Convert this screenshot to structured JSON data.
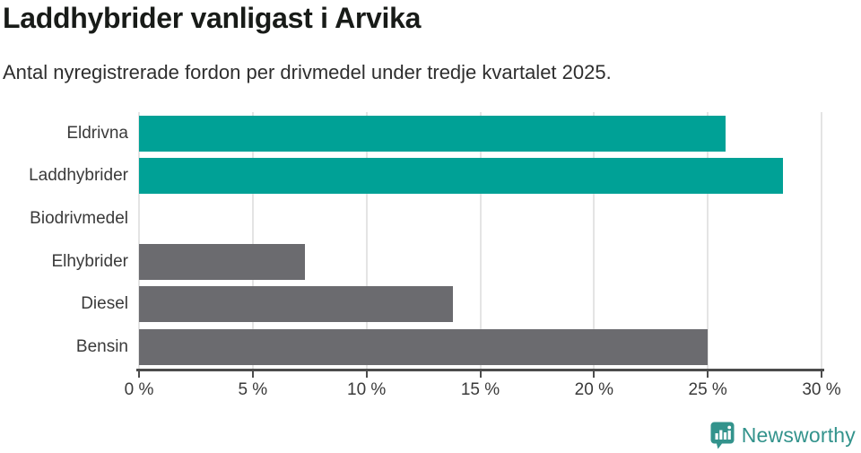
{
  "header": {
    "title": "Laddhybrider vanligast i Arvika",
    "subtitle": "Antal nyregistrerade fordon per drivmedel under tredje kvartalet 2025."
  },
  "chart_data": {
    "type": "bar",
    "orientation": "horizontal",
    "title": "Laddhybrider vanligast i Arvika",
    "subtitle": "Antal nyregistrerade fordon per drivmedel under tredje kvartalet 2025.",
    "categories": [
      "Eldrivna",
      "Laddhybrider",
      "Biodrivmedel",
      "Elhybrider",
      "Diesel",
      "Bensin"
    ],
    "values": [
      25.8,
      28.3,
      0,
      7.3,
      13.8,
      25.0
    ],
    "bar_colors": [
      "#00a196",
      "#00a196",
      "none",
      "#6b6b6f",
      "#6b6b6f",
      "#6b6b6f"
    ],
    "unit": "%",
    "xlabel": "",
    "ylabel": "",
    "xlim": [
      0,
      30
    ],
    "x_ticks": [
      0,
      5,
      10,
      15,
      20,
      25,
      30
    ],
    "x_tick_labels": [
      "0 %",
      "5 %",
      "10 %",
      "15 %",
      "20 %",
      "25 %",
      "30 %"
    ],
    "grid": "vertical-only",
    "legend": "none"
  },
  "footer": {
    "brand": "Newsworthy",
    "brand_color": "#33938c",
    "logo_icon": "bar-chart-speech-bubble-icon"
  },
  "colors": {
    "accent_teal": "#00a196",
    "neutral_gray": "#6b6b6f",
    "axis_line": "#4c4c4c",
    "gridline": "#e4e4e4",
    "title_text": "#181b18",
    "body_text": "#3a3a3a"
  }
}
